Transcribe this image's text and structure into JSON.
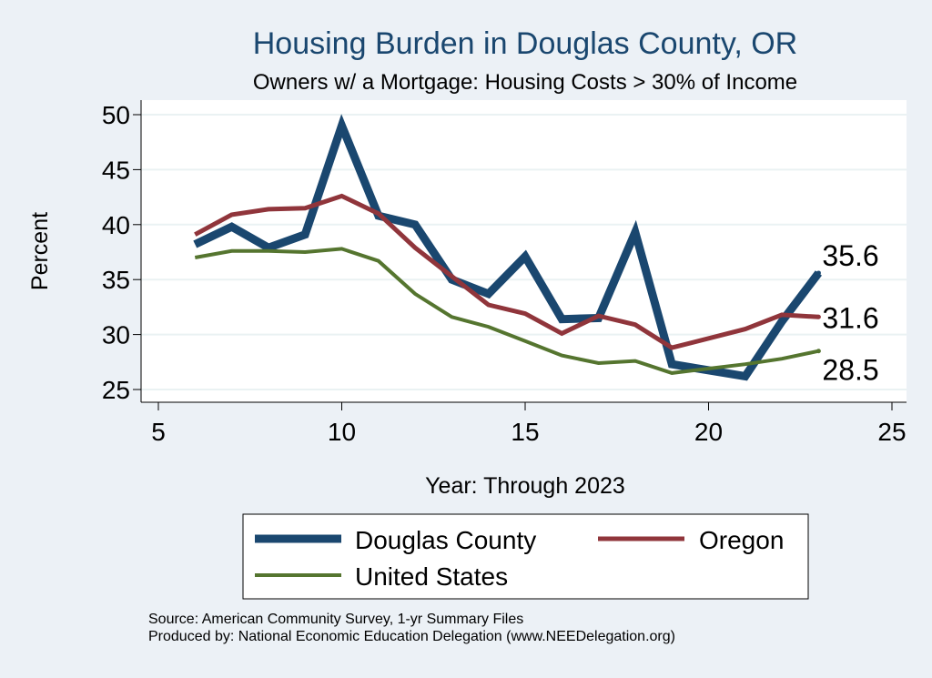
{
  "chart_data": {
    "type": "line",
    "title": "Housing Burden in Douglas County, OR",
    "subtitle": "Owners w/ a Mortgage: Housing Costs > 30% of Income",
    "xlabel": "Year: Through 2023",
    "ylabel": "Percent",
    "xlim": [
      5,
      25
    ],
    "ylim": [
      24.5,
      51
    ],
    "x_ticks": [
      5,
      10,
      15,
      20,
      25
    ],
    "y_ticks": [
      25,
      30,
      35,
      40,
      45,
      50
    ],
    "grid": true,
    "x": [
      6,
      7,
      8,
      9,
      10,
      11,
      12,
      13,
      14,
      15,
      16,
      17,
      18,
      19,
      21,
      22,
      23
    ],
    "series": [
      {
        "name": "Douglas County",
        "color": "#1a476f",
        "values": [
          38.2,
          39.8,
          37.9,
          39.1,
          49.0,
          40.8,
          40.0,
          35.0,
          33.7,
          37.1,
          31.4,
          31.5,
          39.3,
          27.3,
          26.2,
          31.2,
          35.6
        ],
        "end_label": "35.6"
      },
      {
        "name": "Oregon",
        "color": "#90353b",
        "values": [
          39.1,
          40.9,
          41.4,
          41.5,
          42.6,
          41.0,
          37.9,
          35.3,
          32.7,
          31.9,
          30.1,
          31.7,
          30.9,
          28.8,
          30.5,
          31.8,
          31.6
        ],
        "end_label": "31.6"
      },
      {
        "name": "United States",
        "color": "#55752f",
        "values": [
          37.0,
          37.6,
          37.6,
          37.5,
          37.8,
          36.7,
          33.7,
          31.6,
          30.7,
          29.4,
          28.1,
          27.4,
          27.6,
          26.5,
          27.3,
          27.8,
          28.5
        ],
        "end_label": "28.5"
      }
    ],
    "legend_position": "bottom",
    "source_lines": [
      "Source: American Community Survey, 1-yr Summary Files",
      "Produced by: National Economic Education Delegation (www.NEEDelegation.org)"
    ]
  }
}
